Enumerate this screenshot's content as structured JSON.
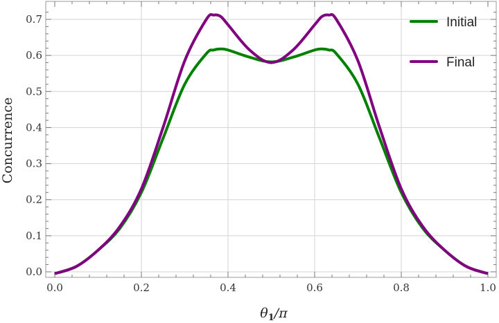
{
  "chart_data": {
    "type": "line",
    "xlabel_main": "θ",
    "xlabel_sub": "1",
    "xlabel_tail": "/π",
    "ylabel": "Concurrence",
    "xlim": [
      0.0,
      1.0
    ],
    "ylim": [
      -0.01,
      0.75
    ],
    "xticks": [
      0.0,
      0.2,
      0.4,
      0.6,
      0.8,
      1.0
    ],
    "xtick_labels": [
      "0.0",
      "0.2",
      "0.4",
      "0.6",
      "0.8",
      "1.0"
    ],
    "yticks": [
      0.0,
      0.1,
      0.2,
      0.3,
      0.4,
      0.5,
      0.6,
      0.7
    ],
    "ytick_labels": [
      "0.0",
      "0.1",
      "0.2",
      "0.3",
      "0.4",
      "0.5",
      "0.6",
      "0.7"
    ],
    "grid": true,
    "legend_position": "top-right",
    "x": [
      0.0,
      0.05,
      0.1,
      0.15,
      0.2,
      0.25,
      0.3,
      0.35,
      0.367,
      0.383,
      0.4,
      0.45,
      0.5,
      0.55,
      0.6,
      0.617,
      0.633,
      0.65,
      0.7,
      0.75,
      0.8,
      0.85,
      0.9,
      0.95,
      1.0
    ],
    "series": [
      {
        "name": "Initial",
        "color": "#008000",
        "values": [
          -0.005,
          0.015,
          0.06,
          0.12,
          0.22,
          0.37,
          0.52,
          0.605,
          0.615,
          0.618,
          0.615,
          0.595,
          0.582,
          0.595,
          0.615,
          0.618,
          0.615,
          0.605,
          0.52,
          0.37,
          0.22,
          0.12,
          0.06,
          0.015,
          -0.005
        ]
      },
      {
        "name": "Final",
        "color": "#800080",
        "values": [
          -0.005,
          0.015,
          0.06,
          0.125,
          0.23,
          0.4,
          0.585,
          0.7,
          0.712,
          0.708,
          0.685,
          0.615,
          0.58,
          0.615,
          0.685,
          0.708,
          0.712,
          0.7,
          0.585,
          0.4,
          0.23,
          0.125,
          0.06,
          0.015,
          -0.005
        ]
      }
    ]
  }
}
